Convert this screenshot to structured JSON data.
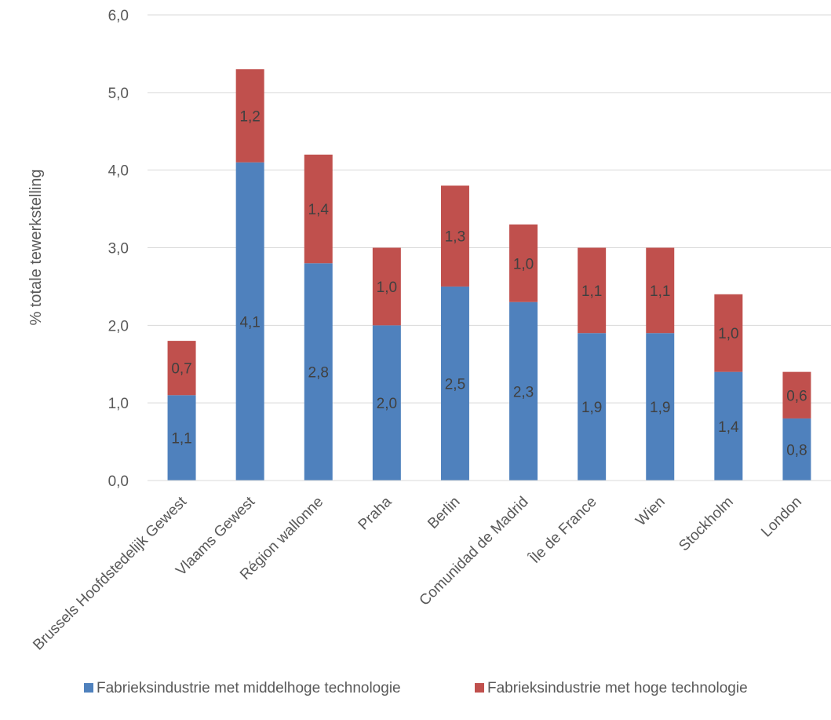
{
  "chart_data": {
    "type": "bar",
    "stacked": true,
    "title": "",
    "xlabel": "",
    "ylabel": "% totale tewerkstelling",
    "ylim": [
      0,
      6
    ],
    "yticks": [
      "0,0",
      "1,0",
      "2,0",
      "3,0",
      "4,0",
      "5,0",
      "6,0"
    ],
    "grid": true,
    "legend_position": "bottom",
    "categories": [
      "Brussels Hoofdstedelijk Gewest",
      "Vlaams Gewest",
      "Région wallonne",
      "Praha",
      "Berlin",
      "Comunidad de Madrid",
      "Île de France",
      "Wien",
      "Stockholm",
      "London"
    ],
    "series": [
      {
        "name": "Fabrieksindustrie met middelhoge technologie",
        "color": "#4F81BD",
        "values": [
          1.1,
          4.1,
          2.8,
          2.0,
          2.5,
          2.3,
          1.9,
          1.9,
          1.4,
          0.8
        ],
        "labels": [
          "1,1",
          "4,1",
          "2,8",
          "2,0",
          "2,5",
          "2,3",
          "1,9",
          "1,9",
          "1,4",
          "0,8"
        ]
      },
      {
        "name": "Fabrieksindustrie met hoge technologie",
        "color": "#C0504D",
        "values": [
          0.7,
          1.2,
          1.4,
          1.0,
          1.3,
          1.0,
          1.1,
          1.1,
          1.0,
          0.6
        ],
        "labels": [
          "0,7",
          "1,2",
          "1,4",
          "1,0",
          "1,3",
          "1,0",
          "1,1",
          "1,1",
          "1,0",
          "0,6"
        ]
      }
    ]
  }
}
